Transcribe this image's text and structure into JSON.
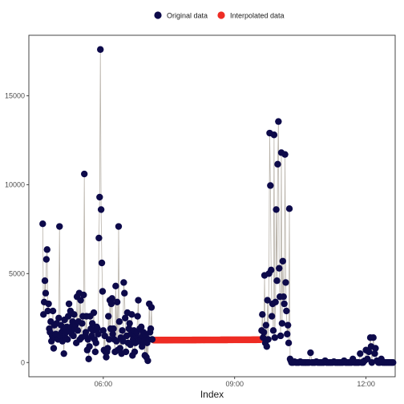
{
  "chart_data": {
    "type": "scatter",
    "xlabel": "Index",
    "ylabel": "",
    "x_unit": "time (HH:MM)",
    "xlim": [
      "04:18",
      "12:40"
    ],
    "ylim": [
      -800,
      18400
    ],
    "x_ticks": [
      "06:00",
      "09:00",
      "12:00"
    ],
    "y_ticks": [
      0,
      5000,
      10000,
      15000
    ],
    "grid": false,
    "legend_position": "top",
    "series": [
      {
        "name": "Original data",
        "color": "#0d0a4a",
        "line_color": "#b9b3aa",
        "points": [
          [
            "04:37",
            7800
          ],
          [
            "04:38",
            2700
          ],
          [
            "04:39",
            3400
          ],
          [
            "04:40",
            4600
          ],
          [
            "04:41",
            3900
          ],
          [
            "04:42",
            5800
          ],
          [
            "04:43",
            6350
          ],
          [
            "04:44",
            2900
          ],
          [
            "04:45",
            3300
          ],
          [
            "04:46",
            1900
          ],
          [
            "04:47",
            1700
          ],
          [
            "04:48",
            2300
          ],
          [
            "04:49",
            1200
          ],
          [
            "04:50",
            1500
          ],
          [
            "04:51",
            2900
          ],
          [
            "04:52",
            800
          ],
          [
            "04:53",
            2100
          ],
          [
            "04:54",
            1400
          ],
          [
            "04:55",
            1600
          ],
          [
            "04:56",
            2200
          ],
          [
            "04:58",
            1300
          ],
          [
            "04:59",
            2500
          ],
          [
            "05:00",
            7650
          ],
          [
            "05:01",
            1500
          ],
          [
            "05:02",
            2100
          ],
          [
            "05:03",
            1700
          ],
          [
            "05:04",
            1200
          ],
          [
            "05:05",
            1800
          ],
          [
            "05:06",
            500
          ],
          [
            "05:07",
            2400
          ],
          [
            "05:08",
            1400
          ],
          [
            "05:09",
            1700
          ],
          [
            "05:10",
            2000
          ],
          [
            "05:11",
            1300
          ],
          [
            "05:12",
            2600
          ],
          [
            "05:13",
            3300
          ],
          [
            "05:14",
            1800
          ],
          [
            "05:15",
            2900
          ],
          [
            "05:16",
            2000
          ],
          [
            "05:17",
            1600
          ],
          [
            "05:18",
            2300
          ],
          [
            "05:19",
            1500
          ],
          [
            "05:20",
            2700
          ],
          [
            "05:21",
            1900
          ],
          [
            "05:22",
            2100
          ],
          [
            "05:23",
            1100
          ],
          [
            "05:24",
            3700
          ],
          [
            "05:25",
            1800
          ],
          [
            "05:26",
            2300
          ],
          [
            "05:27",
            3900
          ],
          [
            "05:28",
            1300
          ],
          [
            "05:29",
            3500
          ],
          [
            "05:30",
            1400
          ],
          [
            "05:31",
            2200
          ],
          [
            "05:32",
            2600
          ],
          [
            "05:33",
            3800
          ],
          [
            "05:34",
            10600
          ],
          [
            "05:35",
            1500
          ],
          [
            "05:36",
            1700
          ],
          [
            "05:37",
            2600
          ],
          [
            "05:38",
            700
          ],
          [
            "05:39",
            1300
          ],
          [
            "05:40",
            200
          ],
          [
            "05:41",
            900
          ],
          [
            "05:42",
            2600
          ],
          [
            "05:43",
            1900
          ],
          [
            "05:44",
            1500
          ],
          [
            "05:45",
            2200
          ],
          [
            "05:46",
            1800
          ],
          [
            "05:47",
            2800
          ],
          [
            "05:48",
            1300
          ],
          [
            "05:49",
            600
          ],
          [
            "05:50",
            1100
          ],
          [
            "05:51",
            2000
          ],
          [
            "05:52",
            1900
          ],
          [
            "05:53",
            1600
          ],
          [
            "05:54",
            7000
          ],
          [
            "05:55",
            9300
          ],
          [
            "05:56",
            17600
          ],
          [
            "05:57",
            8600
          ],
          [
            "05:58",
            5600
          ],
          [
            "05:59",
            4000
          ],
          [
            "06:00",
            1800
          ],
          [
            "06:01",
            700
          ],
          [
            "06:02",
            1500
          ],
          [
            "06:03",
            600
          ],
          [
            "06:04",
            300
          ],
          [
            "06:05",
            600
          ],
          [
            "06:06",
            800
          ],
          [
            "06:07",
            2600
          ],
          [
            "06:08",
            1300
          ],
          [
            "06:09",
            3500
          ],
          [
            "06:10",
            1900
          ],
          [
            "06:11",
            3300
          ],
          [
            "06:12",
            3600
          ],
          [
            "06:13",
            1600
          ],
          [
            "06:14",
            1900
          ],
          [
            "06:15",
            1300
          ],
          [
            "06:16",
            600
          ],
          [
            "06:17",
            4300
          ],
          [
            "06:18",
            1200
          ],
          [
            "06:19",
            3400
          ],
          [
            "06:20",
            700
          ],
          [
            "06:21",
            7650
          ],
          [
            "06:22",
            2300
          ],
          [
            "06:23",
            800
          ],
          [
            "06:24",
            1400
          ],
          [
            "06:25",
            500
          ],
          [
            "06:26",
            1800
          ],
          [
            "06:27",
            1200
          ],
          [
            "06:28",
            4500
          ],
          [
            "06:29",
            3900
          ],
          [
            "06:30",
            2500
          ],
          [
            "06:31",
            600
          ],
          [
            "06:32",
            1500
          ],
          [
            "06:33",
            2800
          ],
          [
            "06:34",
            1100
          ],
          [
            "06:35",
            1900
          ],
          [
            "06:36",
            2200
          ],
          [
            "06:37",
            1000
          ],
          [
            "06:38",
            1600
          ],
          [
            "06:39",
            2700
          ],
          [
            "06:40",
            400
          ],
          [
            "06:41",
            1300
          ],
          [
            "06:42",
            1800
          ],
          [
            "06:43",
            600
          ],
          [
            "06:44",
            1100
          ],
          [
            "06:45",
            1500
          ],
          [
            "06:46",
            1700
          ],
          [
            "06:47",
            2600
          ],
          [
            "06:48",
            3500
          ],
          [
            "06:49",
            1200
          ],
          [
            "06:50",
            1900
          ],
          [
            "06:51",
            1300
          ],
          [
            "06:52",
            2000
          ],
          [
            "06:53",
            900
          ],
          [
            "06:54",
            1500
          ],
          [
            "06:55",
            1700
          ],
          [
            "06:56",
            1200
          ],
          [
            "06:57",
            400
          ],
          [
            "06:58",
            1500
          ],
          [
            "06:59",
            300
          ],
          [
            "07:00",
            1100
          ],
          [
            "07:01",
            100
          ],
          [
            "07:02",
            1300
          ],
          [
            "07:03",
            3300
          ],
          [
            "07:04",
            1700
          ],
          [
            "07:05",
            1900
          ],
          [
            "07:06",
            3100
          ],
          [
            "07:07",
            1300
          ],
          [
            "09:37",
            1800
          ],
          [
            "09:38",
            2700
          ],
          [
            "09:39",
            1400
          ],
          [
            "09:40",
            1700
          ],
          [
            "09:41",
            4900
          ],
          [
            "09:42",
            1100
          ],
          [
            "09:43",
            2100
          ],
          [
            "09:44",
            900
          ],
          [
            "09:45",
            3500
          ],
          [
            "09:46",
            1300
          ],
          [
            "09:47",
            5000
          ],
          [
            "09:48",
            12900
          ],
          [
            "09:49",
            9950
          ],
          [
            "09:50",
            5200
          ],
          [
            "09:51",
            2600
          ],
          [
            "09:52",
            3300
          ],
          [
            "09:53",
            1800
          ],
          [
            "09:54",
            12800
          ],
          [
            "09:55",
            1400
          ],
          [
            "09:56",
            3400
          ],
          [
            "09:57",
            8600
          ],
          [
            "09:58",
            4600
          ],
          [
            "09:59",
            11150
          ],
          [
            "10:00",
            13550
          ],
          [
            "10:01",
            5300
          ],
          [
            "10:02",
            3700
          ],
          [
            "10:03",
            1500
          ],
          [
            "10:04",
            11800
          ],
          [
            "10:05",
            2200
          ],
          [
            "10:06",
            5700
          ],
          [
            "10:07",
            3700
          ],
          [
            "10:08",
            3300
          ],
          [
            "10:09",
            11700
          ],
          [
            "10:10",
            4500
          ],
          [
            "10:11",
            2900
          ],
          [
            "10:12",
            1600
          ],
          [
            "10:13",
            2100
          ],
          [
            "10:14",
            1100
          ],
          [
            "10:15",
            8650
          ],
          [
            "10:16",
            200
          ],
          [
            "10:17",
            100
          ],
          [
            "10:18",
            0
          ],
          [
            "10:20",
            0
          ],
          [
            "10:22",
            50
          ],
          [
            "10:24",
            0
          ],
          [
            "10:26",
            0
          ],
          [
            "10:28",
            0
          ],
          [
            "10:30",
            50
          ],
          [
            "10:32",
            0
          ],
          [
            "10:34",
            0
          ],
          [
            "10:36",
            0
          ],
          [
            "10:38",
            0
          ],
          [
            "10:40",
            0
          ],
          [
            "10:42",
            0
          ],
          [
            "10:44",
            550
          ],
          [
            "10:46",
            0
          ],
          [
            "10:48",
            0
          ],
          [
            "10:50",
            0
          ],
          [
            "10:52",
            50
          ],
          [
            "10:54",
            0
          ],
          [
            "10:56",
            0
          ],
          [
            "10:58",
            0
          ],
          [
            "11:00",
            0
          ],
          [
            "11:02",
            0
          ],
          [
            "11:04",
            100
          ],
          [
            "11:06",
            0
          ],
          [
            "11:08",
            0
          ],
          [
            "11:10",
            0
          ],
          [
            "11:12",
            0
          ],
          [
            "11:14",
            0
          ],
          [
            "11:16",
            50
          ],
          [
            "11:18",
            0
          ],
          [
            "11:20",
            0
          ],
          [
            "11:22",
            0
          ],
          [
            "11:24",
            0
          ],
          [
            "11:26",
            0
          ],
          [
            "11:28",
            0
          ],
          [
            "11:30",
            100
          ],
          [
            "11:32",
            0
          ],
          [
            "11:34",
            0
          ],
          [
            "11:36",
            0
          ],
          [
            "11:38",
            0
          ],
          [
            "11:40",
            0
          ],
          [
            "11:42",
            200
          ],
          [
            "11:44",
            0
          ],
          [
            "11:46",
            0
          ],
          [
            "11:48",
            0
          ],
          [
            "11:50",
            0
          ],
          [
            "11:52",
            500
          ],
          [
            "11:54",
            0
          ],
          [
            "11:56",
            0
          ],
          [
            "11:58",
            100
          ],
          [
            "12:00",
            700
          ],
          [
            "12:02",
            200
          ],
          [
            "12:04",
            600
          ],
          [
            "12:06",
            1400
          ],
          [
            "12:07",
            900
          ],
          [
            "12:08",
            0
          ],
          [
            "12:10",
            1400
          ],
          [
            "12:12",
            500
          ],
          [
            "12:13",
            800
          ],
          [
            "12:15",
            100
          ],
          [
            "12:17",
            0
          ],
          [
            "12:19",
            0
          ],
          [
            "12:21",
            200
          ],
          [
            "12:23",
            0
          ],
          [
            "12:25",
            0
          ],
          [
            "12:27",
            0
          ],
          [
            "12:29",
            0
          ],
          [
            "12:31",
            0
          ],
          [
            "12:33",
            0
          ],
          [
            "12:35",
            0
          ],
          [
            "12:37",
            0
          ]
        ]
      },
      {
        "name": "Interpolated data",
        "color": "#ee2c24",
        "x_range": [
          "07:09",
          "09:35"
        ],
        "y_range": [
          1260,
          1280
        ]
      }
    ]
  }
}
